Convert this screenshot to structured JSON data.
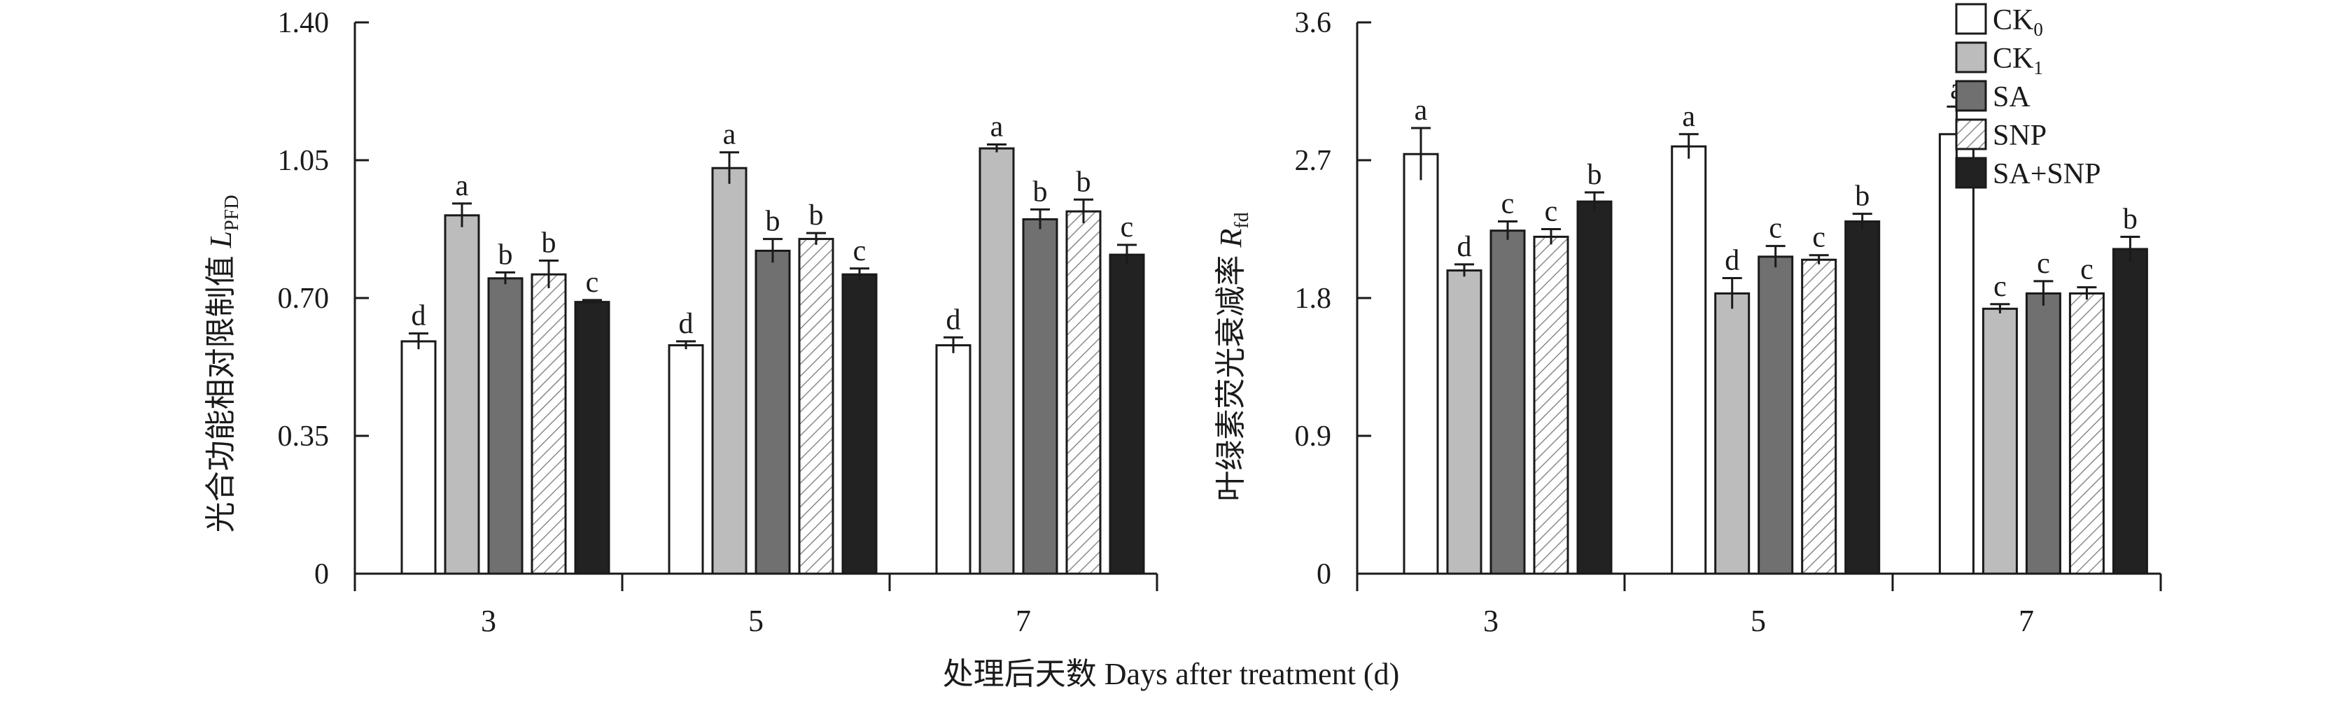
{
  "colors": {
    "CK0": "#ffffff",
    "CK1": "#bcbcbc",
    "SA": "#707070",
    "SNP": "hatch",
    "SA+SNP": "#222222",
    "axis": "#1a1a1a"
  },
  "shared_xlabel": "处理后天数 Days after treatment (d)",
  "legend": [
    {
      "key": "CK0",
      "base": "CK",
      "sub": "0"
    },
    {
      "key": "CK1",
      "base": "CK",
      "sub": "1"
    },
    {
      "key": "SA",
      "base": "SA",
      "sub": ""
    },
    {
      "key": "SNP",
      "base": "SNP",
      "sub": ""
    },
    {
      "key": "SA+SNP",
      "base": "SA+SNP",
      "sub": ""
    }
  ],
  "chart_data": [
    {
      "type": "bar",
      "ylabel": {
        "text": "光合功能相对限制值 ",
        "symbol": "L",
        "sub": "PFD"
      },
      "ylim": [
        0,
        1.4
      ],
      "yticks": [
        "0",
        "0.35",
        "0.70",
        "1.05",
        "1.40"
      ],
      "categories": [
        "3",
        "5",
        "7"
      ],
      "series": [
        {
          "name": "CK0",
          "values": [
            0.59,
            0.58,
            0.58
          ],
          "errors": [
            0.02,
            0.01,
            0.02
          ],
          "letters": [
            "d",
            "d",
            "d"
          ]
        },
        {
          "name": "CK1",
          "values": [
            0.91,
            1.03,
            1.08
          ],
          "errors": [
            0.03,
            0.04,
            0.01
          ],
          "letters": [
            "a",
            "a",
            "a"
          ]
        },
        {
          "name": "SA",
          "values": [
            0.75,
            0.82,
            0.9
          ],
          "errors": [
            0.015,
            0.03,
            0.025
          ],
          "letters": [
            "b",
            "b",
            "b"
          ]
        },
        {
          "name": "SNP",
          "values": [
            0.76,
            0.85,
            0.92
          ],
          "errors": [
            0.035,
            0.015,
            0.03
          ],
          "letters": [
            "b",
            "b",
            "b"
          ]
        },
        {
          "name": "SA+SNP",
          "values": [
            0.69,
            0.76,
            0.81
          ],
          "errors": [
            0.005,
            0.015,
            0.025
          ],
          "letters": [
            "c",
            "c",
            "c"
          ]
        }
      ]
    },
    {
      "type": "bar",
      "ylabel": {
        "text": "叶绿素荧光衰减率 ",
        "symbol": "R",
        "sub": "fd"
      },
      "ylim": [
        0,
        3.6
      ],
      "yticks": [
        "0",
        "0.9",
        "1.8",
        "2.7",
        "3.6"
      ],
      "categories": [
        "3",
        "5",
        "7"
      ],
      "series": [
        {
          "name": "CK0",
          "values": [
            2.74,
            2.79,
            2.87
          ],
          "errors": [
            0.17,
            0.08,
            0.18
          ],
          "letters": [
            "a",
            "a",
            "a"
          ]
        },
        {
          "name": "CK1",
          "values": [
            1.98,
            1.83,
            1.73
          ],
          "errors": [
            0.04,
            0.1,
            0.03
          ],
          "letters": [
            "d",
            "d",
            "c"
          ]
        },
        {
          "name": "SA",
          "values": [
            2.24,
            2.07,
            1.83
          ],
          "errors": [
            0.06,
            0.07,
            0.08
          ],
          "letters": [
            "c",
            "c",
            "c"
          ]
        },
        {
          "name": "SNP",
          "values": [
            2.2,
            2.05,
            1.83
          ],
          "errors": [
            0.05,
            0.03,
            0.04
          ],
          "letters": [
            "c",
            "c",
            "c"
          ]
        },
        {
          "name": "SA+SNP",
          "values": [
            2.43,
            2.3,
            2.12
          ],
          "errors": [
            0.06,
            0.05,
            0.08
          ],
          "letters": [
            "b",
            "b",
            "b"
          ]
        }
      ]
    }
  ]
}
